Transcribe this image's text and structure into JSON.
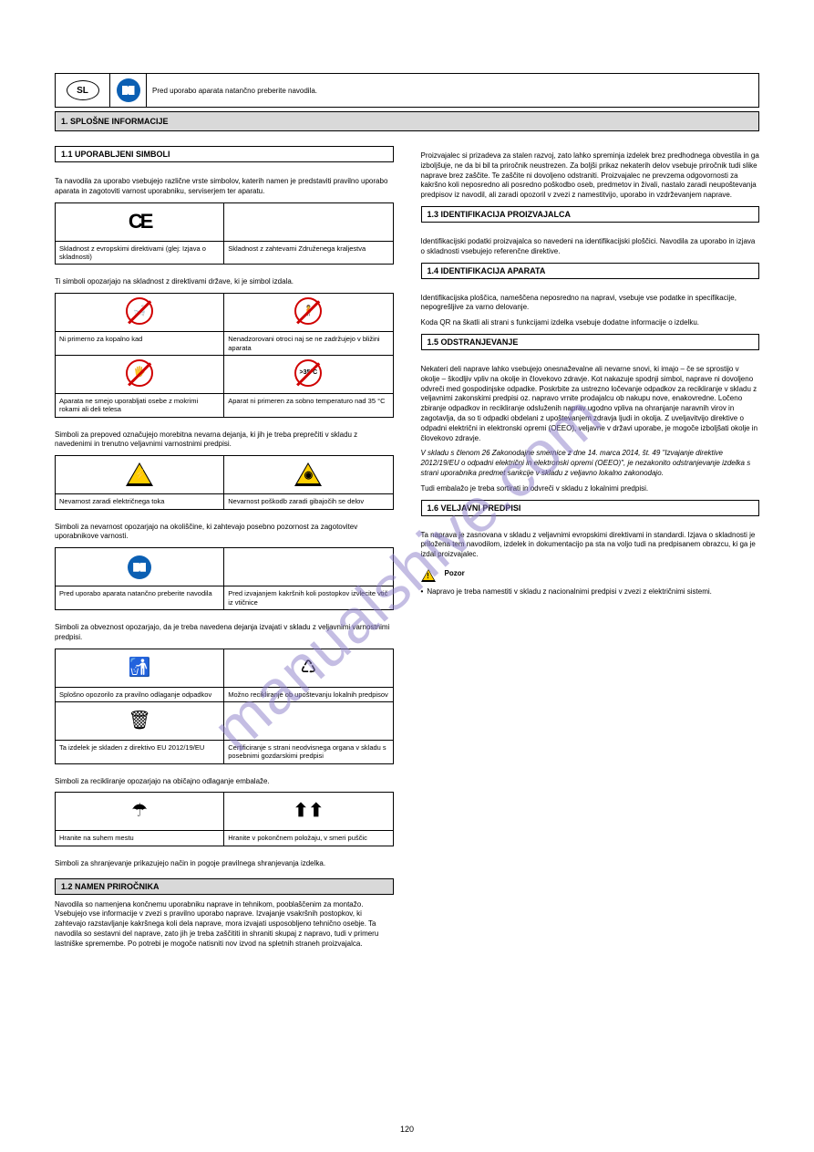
{
  "watermark": "manualshive.com",
  "lang_code": "SL",
  "top_note": "Pred uporabo aparata natančno preberite navodila.",
  "section_title": "1. SPLOŠNE INFORMACIJE",
  "symbols_heading": "1.1 UPORABLJENI SIMBOLI",
  "symbols_intro": "Ta navodila za uporabo vsebujejo različne vrste simbolov, katerih namen je predstaviti pravilno uporabo aparata in zagotoviti varnost uporabniku, serviserjem ter aparatu.",
  "compliance": {
    "ce_label": "Skladnost z evropskimi direktivami (glej: Izjava o skladnosti)",
    "ukca_label": "Skladnost z zahtevami Združenega kraljestva"
  },
  "compliance_note": "Ti simboli opozarjajo na skladnost z direktivami države, ki je simbol izdala.",
  "prohib": {
    "water_label": "Ni primerno za kopalno kad",
    "children_label": "Nenadzorovani otroci naj se ne zadržujejo v bližini aparata",
    "wet_label": "Aparata ne smejo uporabljati osebe z mokrimi rokami ali deli telesa",
    "temp_label": "Aparat ni primeren za sobno temperaturo nad 35 °C"
  },
  "prohib_note": "Simboli za prepoved označujejo morebitna nevarna dejanja, ki jih je treba preprečiti v skladu z navedenimi in trenutno veljavnimi varnostnimi predpisi.",
  "danger": {
    "elec_label": "Nevarnost zaradi električnega toka",
    "fan_label": "Nevarnost poškodb zaradi gibajočih se delov"
  },
  "danger_note": "Simboli za nevarnost opozarjajo na okoliščine, ki zahtevajo posebno pozornost za zagotovitev uporabnikove varnosti.",
  "obligation": {
    "manual_label": "Pred uporabo aparata natančno preberite navodila",
    "plug_label": "Pred izvajanjem kakršnih koli postopkov izvlecite vtič iz vtičnice"
  },
  "obligation_note": "Simboli za obveznost opozarjajo, da je treba navedena dejanja izvajati v skladu z veljavnimi varnostnimi predpisi.",
  "recycle": {
    "litter_label": "Splošno opozorilo za pravilno odlaganje odpadkov",
    "pap_label": "Možno recikliranje ob upoštevanju lokalnih predpisov",
    "weee_label": "Ta izdelek je skladen z direktivo EU 2012/19/EU",
    "cert_label": "Certificiranje s strani neodvisnega organa v skladu s posebnimi gozdarskimi predpisi"
  },
  "recycle_note": "Simboli za recikliranje opozarjajo na običajno odlaganje embalaže.",
  "storage": {
    "dry_label": "Hranite na suhem mestu",
    "up_label": "Hranite v pokončnem položaju, v smeri puščic"
  },
  "storage_note": "Simboli za shranjevanje prikazujejo način in pogoje pravilnega shranjevanja izdelka.",
  "purpose_heading": "1.2 NAMEN PRIROČNIKA",
  "purpose_text": "Navodila so namenjena končnemu uporabniku naprave in tehnikom, pooblaščenim za montažo. Vsebujejo vse informacije v zvezi s pravilno uporabo naprave. Izvajanje vsakršnih postopkov, ki zahtevajo razstavljanje kakršnega koli dela naprave, mora izvajati usposobljeno tehnično osebje. Ta navodila so sestavni del naprave, zato jih je treba zaščititi in shraniti skupaj z napravo, tudi v primeru lastniške spremembe. Po potrebi je mogoče natisniti nov izvod na spletnih straneh proizvajalca.",
  "right_col": {
    "purpose_para2": "Proizvajalec si prizadeva za stalen razvoj, zato lahko spreminja izdelek brez predhodnega obvestila in ga izboljšuje, ne da bi bil ta priročnik neustrezen. Za boljši prikaz nekaterih delov vsebuje priročnik tudi slike naprave brez zaščite. Te zaščite ni dovoljeno odstraniti. Proizvajalec ne prevzema odgovornosti za kakršno koli neposredno ali posredno poškodbo oseb, predmetov in živali, nastalo zaradi neupoštevanja predpisov iz navodil, ali zaradi opozoril v zvezi z namestitvijo, uporabo in vzdrževanjem naprave.",
    "mfg_heading": "1.3 IDENTIFIKACIJA PROIZVAJALCA",
    "mfg_text": "Identifikacijski podatki proizvajalca so navedeni na identifikacijski ploščici. Navodila za uporabo in izjava o skladnosti vsebujejo referenčne direktive.",
    "id_heading": "1.4 IDENTIFIKACIJA APARATA",
    "id_text": "Identifikacijska ploščica, nameščena neposredno na napravi, vsebuje vse podatke in specifikacije, nepogrešljive za varno delovanje.",
    "id_extra": "Koda QR na škatli ali strani s funkcijami izdelka vsebuje dodatne informacije o izdelku.",
    "dispose_heading": "1.5 ODSTRANJEVANJE",
    "dispose_intro": "Nekateri deli naprave lahko vsebujejo onesnaževalne ali nevarne snovi, ki imajo – če se sprostijo v okolje – škodljiv vpliv na okolje in človekovo zdravje. Kot nakazuje spodnji simbol, naprave ni dovoljeno odvreči med gospodinjske odpadke. Poskrbite za ustrezno ločevanje odpadkov za recikliranje v skladu z veljavnimi zakonskimi predpisi oz. napravo vrnite prodajalcu ob nakupu nove, enakovredne. Ločeno zbiranje odpadkov in recikliranje odsluženih naprav ugodno vpliva na ohranjanje naravnih virov in zagotavlja, da so ti odpadki obdelani z upoštevanjem zdravja ljudi in okolja. Z uveljavitvijo direktive o odpadni električni in elektronski opremi (OEEO), veljavne v državi uporabe, je mogoče izboljšati okolje in človekovo zdravje.",
    "dispose_em": "V skladu s členom 26 Zakonodajne smernice z dne 14. marca 2014, št. 49 \"Izvajanje direktive 2012/19/EU o odpadni električni in elektronski opremi (OEEO)\", je nezakonito odstranjevanje izdelka s strani uporabnika predmet sankcije v skladu z veljavno lokalno zakonodajo.",
    "dispose_pkg": "Tudi embalažo je treba sortirati in odvreči v skladu z lokalnimi predpisi.",
    "reg_heading": "1.6 VELJAVNI PREDPISI",
    "reg_text": "Ta naprava je zasnovana v skladu z veljavnimi evropskimi direktivami in standardi. Izjava o skladnosti je priložena tem navodilom, izdelek in dokumentacijo pa sta na voljo tudi na predpisanem obrazcu, ki ga je izdal proizvajalec.",
    "attention_label": "Pozor",
    "attention_text": "Napravo je treba namestiti v skladu z nacionalnimi predpisi v zvezi z električnimi sistemi."
  },
  "page_number": "120"
}
